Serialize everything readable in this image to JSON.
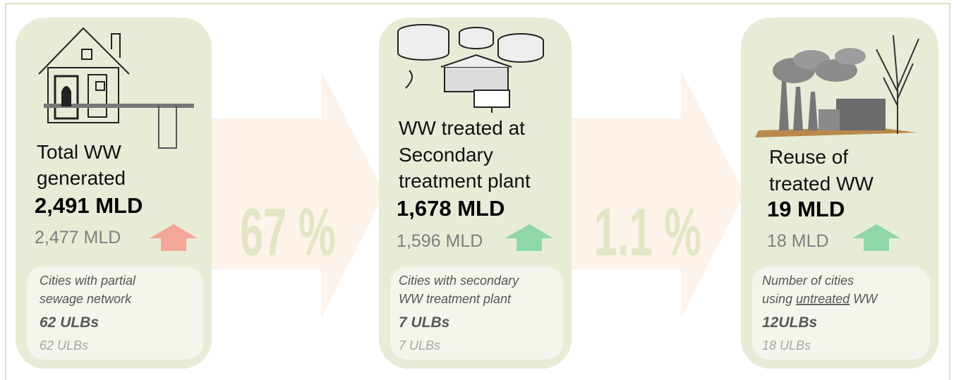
{
  "cards": [
    {
      "title_lines": [
        "Total WW",
        "generated"
      ],
      "value": "2,491 MLD",
      "previous": "2,477 MLD",
      "trend_color": "#f4a796",
      "note_lines": [
        [
          "Cities with partial"
        ],
        [
          "sewage network"
        ]
      ],
      "ulbs": "62 ULBs",
      "previous_ulbs": "62 ULBs"
    },
    {
      "title_lines": [
        "WW treated at",
        "Secondary",
        "treatment plant"
      ],
      "value": "1,678 MLD",
      "previous": "1,596 MLD",
      "trend_color": "#8fd6a8",
      "note_lines": [
        [
          "Cities with secondary"
        ],
        [
          "WW treatment plant"
        ]
      ],
      "ulbs": "7 ULBs",
      "previous_ulbs": "7 ULBs"
    },
    {
      "title_lines": [
        "Reuse of",
        "treated WW"
      ],
      "value": "19 MLD",
      "previous": "18 MLD",
      "trend_color": "#8fd6a8",
      "note_lines": [
        [
          "Number of cities"
        ],
        [
          "using ",
          {
            "text": "untreated",
            "underline": true
          },
          " WW"
        ]
      ],
      "ulbs": "12ULBs",
      "previous_ulbs": "18 ULBs"
    }
  ],
  "connectors": [
    "67 %",
    "1.1 %"
  ]
}
